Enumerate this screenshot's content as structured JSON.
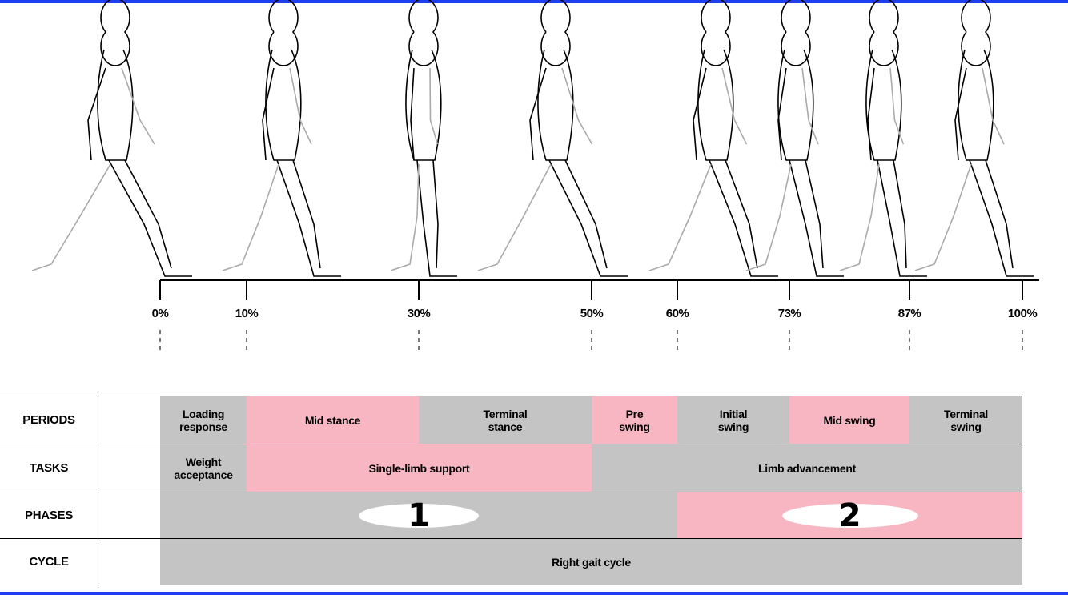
{
  "timeline": {
    "markers": [
      "0%",
      "10%",
      "30%",
      "50%",
      "60%",
      "73%",
      "87%",
      "100%"
    ]
  },
  "table": {
    "row_labels": {
      "periods": "PERIODS",
      "tasks": "TASKS",
      "phases": "PHASES",
      "cycle": "CYCLE"
    },
    "periods": [
      {
        "text": "Loading\nresponse",
        "color": "gray"
      },
      {
        "text": "Mid stance",
        "color": "pink"
      },
      {
        "text": "Terminal\nstance",
        "color": "gray"
      },
      {
        "text": "Pre\nswing",
        "color": "pink"
      },
      {
        "text": "Initial\nswing",
        "color": "gray"
      },
      {
        "text": "Mid swing",
        "color": "pink"
      },
      {
        "text": "Terminal\nswing",
        "color": "gray"
      }
    ],
    "tasks": [
      {
        "text": "Weight\nacceptance",
        "color": "gray"
      },
      {
        "text": "Single-limb support",
        "color": "pink"
      },
      {
        "text": "Limb advancement",
        "color": "gray"
      }
    ],
    "phases": [
      {
        "text": "1",
        "color": "gray"
      },
      {
        "text": "2",
        "color": "pink"
      }
    ],
    "cycle": "Right gait cycle"
  },
  "colors": {
    "gray_cell": "#c4c4c4",
    "pink_cell": "#f7b6c2",
    "frame": "#1e3ff0"
  }
}
